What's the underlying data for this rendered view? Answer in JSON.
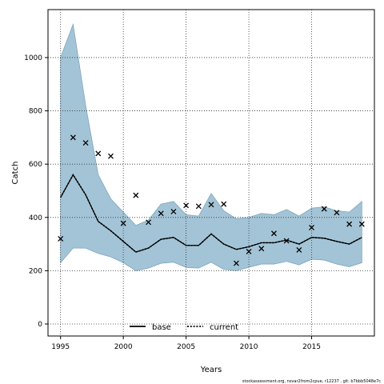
{
  "chart_data": {
    "type": "line",
    "title": "",
    "xlabel": "Years",
    "ylabel": "Catch",
    "xlim": [
      1994,
      2020
    ],
    "ylim": [
      -45,
      1180
    ],
    "xticks": [
      1995,
      2000,
      2005,
      2010,
      2015
    ],
    "yticks": [
      0,
      200,
      400,
      600,
      800,
      1000
    ],
    "x_tick_labels": [
      "1995",
      "2000",
      "2005",
      "2010",
      "2015"
    ],
    "y_tick_labels": [
      "0",
      "200",
      "400",
      "600",
      "800",
      "1000"
    ],
    "grid": true,
    "legend_position": "bottom-center",
    "x": [
      1995,
      1996,
      1997,
      1998,
      1999,
      2000,
      2001,
      2002,
      2003,
      2004,
      2005,
      2006,
      2007,
      2008,
      2009,
      2010,
      2011,
      2012,
      2013,
      2014,
      2015,
      2016,
      2017,
      2018,
      2019
    ],
    "observed": {
      "marker": "x",
      "values": [
        320,
        700,
        680,
        640,
        630,
        378,
        483,
        382,
        415,
        422,
        445,
        442,
        448,
        450,
        228,
        272,
        283,
        340,
        312,
        278,
        362,
        432,
        418,
        375,
        375
      ]
    },
    "band": {
      "color": "#a3c4d6",
      "upper": [
        1000,
        1125,
        820,
        560,
        470,
        420,
        370,
        390,
        450,
        460,
        410,
        405,
        490,
        425,
        395,
        400,
        415,
        410,
        430,
        405,
        435,
        440,
        425,
        420,
        460
      ],
      "lower": [
        230,
        285,
        285,
        265,
        252,
        230,
        200,
        210,
        228,
        232,
        212,
        210,
        232,
        205,
        200,
        213,
        225,
        225,
        235,
        222,
        243,
        240,
        225,
        215,
        230
      ]
    },
    "series": [
      {
        "name": "base",
        "style": "solid",
        "color": "#000000",
        "values": [
          475,
          560,
          485,
          385,
          350,
          310,
          270,
          285,
          318,
          325,
          295,
          295,
          338,
          300,
          280,
          290,
          305,
          305,
          315,
          300,
          325,
          322,
          310,
          300,
          325
        ]
      },
      {
        "name": "current",
        "style": "dotted",
        "color": "#000000",
        "values": [
          475,
          560,
          485,
          385,
          350,
          310,
          270,
          285,
          318,
          325,
          295,
          295,
          338,
          300,
          280,
          290,
          305,
          305,
          315,
          300,
          325,
          322,
          310,
          300,
          325
        ]
      }
    ],
    "legend": [
      "base",
      "current"
    ]
  },
  "footer": {
    "text": "stockassessment.org, nsvar2from2cpue, r12237 , git: b7bbb5048e7c"
  }
}
